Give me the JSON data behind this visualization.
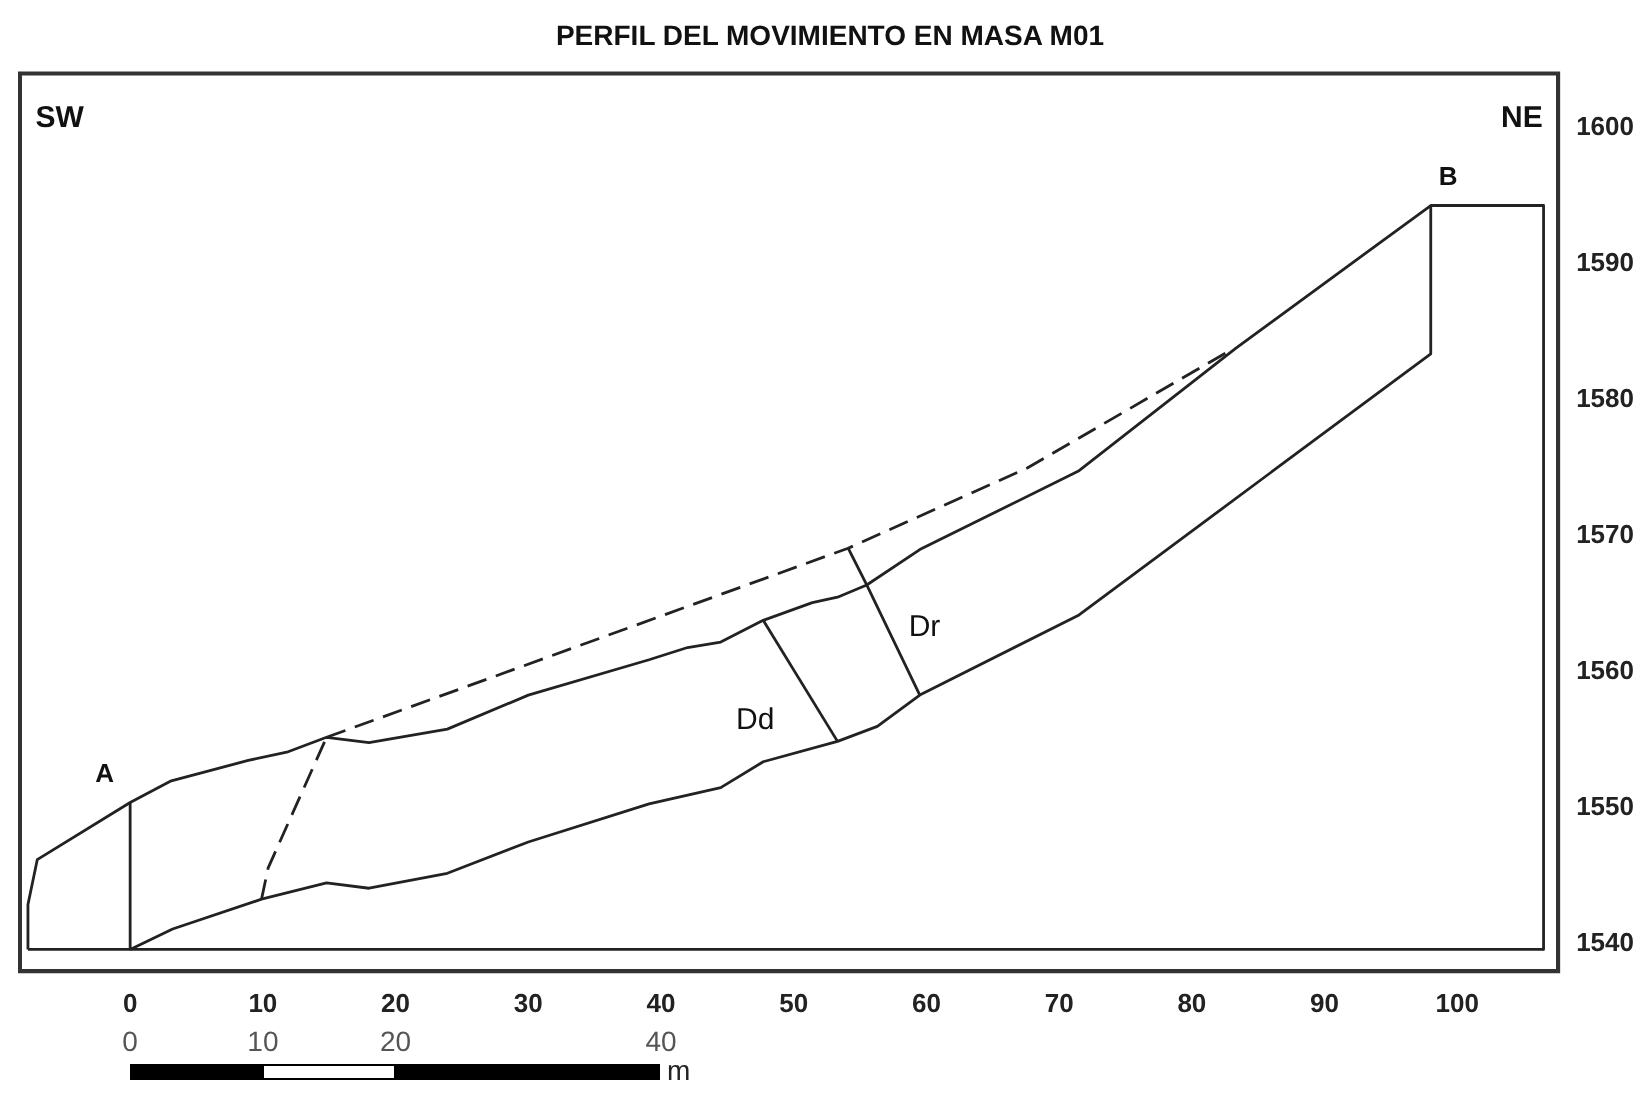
{
  "chart_data": {
    "type": "line",
    "title": "PERFIL DEL MOVIMIENTO EN MASA M01",
    "xlim": [
      -8.3,
      107.6
    ],
    "xticks": [
      0,
      10,
      20,
      30,
      40,
      50,
      60,
      70,
      80,
      90,
      100
    ],
    "ylim": [
      1538,
      1604
    ],
    "yticks": [
      1540,
      1550,
      1560,
      1570,
      1580,
      1590,
      1600
    ],
    "x2lim": [
      -8.3,
      107.6
    ],
    "x2ticks": [
      0,
      10,
      20,
      40
    ],
    "x2label": "m",
    "grid": false,
    "legend": false,
    "marker": "none",
    "series": [
      {
        "color": "#222222",
        "line_style": "solid",
        "x": [
          -7.7,
          -7.7,
          -7.0,
          0,
          3.1,
          8.9,
          11.8,
          14.8,
          18.0,
          23.9,
          30.0,
          39.1,
          42.0,
          44.5,
          47.7,
          51.4,
          53.3,
          55.5,
          59.5,
          71.5,
          83.3,
          98.0,
          106.5,
          106.5
        ],
        "values": [
          1539.6,
          1542.9,
          1546.2,
          1550.4,
          1552.0,
          1553.5,
          1554.1,
          1555.2,
          1554.8,
          1555.8,
          1558.3,
          1560.9,
          1561.8,
          1562.2,
          1563.8,
          1565.1,
          1565.5,
          1566.4,
          1569.0,
          1574.8,
          1583.8,
          1594.3,
          1594.3,
          1539.6
        ]
      },
      {
        "color": "#222222",
        "line_style": "solid",
        "x": [
          -7.7,
          106.5
        ],
        "values": [
          1539.6,
          1539.6
        ]
      },
      {
        "color": "#222222",
        "line_style": "solid",
        "x": [
          0,
          3.2,
          9.9,
          14.8,
          18.0,
          23.9,
          30.0,
          39.1,
          44.5,
          47.7,
          53.3,
          56.3,
          59.5,
          71.5,
          98.0,
          98.0
        ],
        "values": [
          1539.6,
          1541.1,
          1543.3,
          1544.5,
          1544.1,
          1545.2,
          1547.5,
          1550.3,
          1551.5,
          1553.4,
          1554.9,
          1556.0,
          1558.3,
          1564.2,
          1583.4,
          1594.3
        ]
      },
      {
        "color": "#222222",
        "line_style": "dashed",
        "x": [
          14.8,
          54.1,
          67.6,
          82.8
        ],
        "values": [
          1555.2,
          1569.1,
          1575.0,
          1583.6
        ]
      },
      {
        "color": "#222222",
        "line_style": "dashed",
        "x": [
          9.9,
          10.4,
          14.8
        ],
        "values": [
          1543.3,
          1545.6,
          1555.2
        ]
      },
      {
        "color": "#222222",
        "line_style": "solid",
        "x": [
          47.7,
          53.3
        ],
        "values": [
          1563.8,
          1554.9
        ]
      },
      {
        "color": "#222222",
        "line_style": "solid",
        "x": [
          54.1,
          55.5,
          59.5
        ],
        "values": [
          1569.1,
          1566.4,
          1558.3
        ]
      },
      {
        "color": "#222222",
        "line_style": "solid",
        "x": [
          0,
          0
        ],
        "values": [
          1539.6,
          1550.4
        ]
      }
    ],
    "annotations": [
      "SW",
      "NE",
      {
        "text": "A",
        "x": 0,
        "y": 1550.4
      },
      {
        "text": "B",
        "x": 98.0,
        "y": 1594.3
      },
      "Dd",
      "Dr"
    ]
  }
}
